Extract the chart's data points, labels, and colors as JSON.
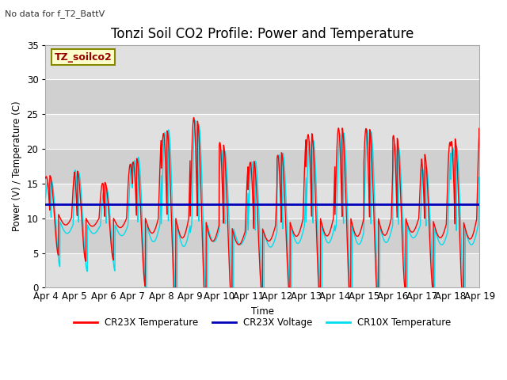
{
  "title": "Tonzi Soil CO2 Profile: Power and Temperature",
  "subtitle": "No data for f_T2_BattV",
  "ylabel": "Power (V) / Temperature (C)",
  "xlabel": "Time",
  "legend_label": "TZ_soilco2",
  "ylim": [
    0,
    35
  ],
  "yticks": [
    0,
    5,
    10,
    15,
    20,
    25,
    30,
    35
  ],
  "xtick_labels": [
    "Apr 4",
    "Apr 5",
    "Apr 6",
    "Apr 7",
    "Apr 8",
    "Apr 9",
    "Apr 10",
    "Apr 11",
    "Apr 12",
    "Apr 13",
    "Apr 14",
    "Apr 15",
    "Apr 16",
    "Apr 17",
    "Apr 18",
    "Apr 19"
  ],
  "color_red": "#ff0000",
  "color_blue": "#0000bb",
  "color_cyan": "#00ddee",
  "voltage_value": 12.0,
  "plot_bg_light": "#e8e8e8",
  "plot_bg_dark": "#d0d0d0",
  "grid_color": "#ffffff",
  "title_fontsize": 12,
  "axis_fontsize": 8.5,
  "figsize": [
    6.4,
    4.8
  ],
  "dpi": 100
}
